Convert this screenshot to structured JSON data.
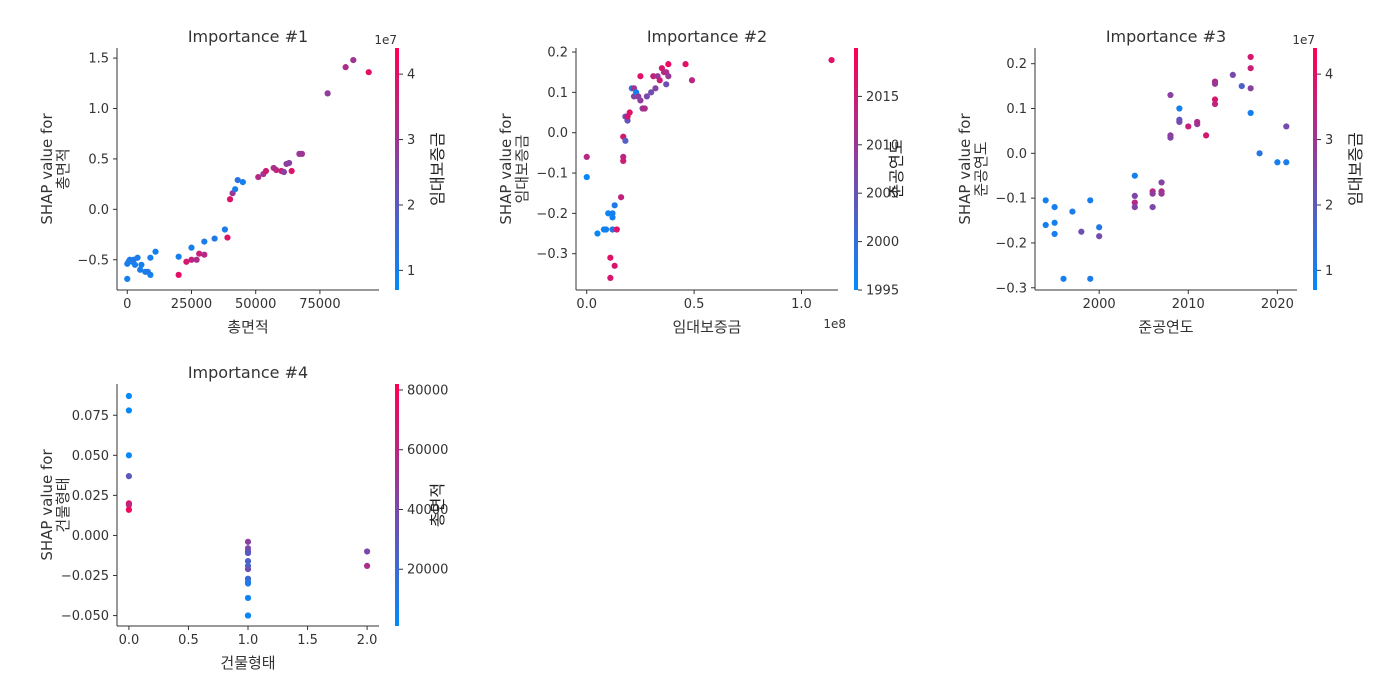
{
  "colors": {
    "low": "#008bfb",
    "high": "#ff0052"
  },
  "chart_data": [
    {
      "type": "scatter",
      "title": "Importance #1",
      "xlabel": "총면적",
      "ylabel_line1": "SHAP value for",
      "ylabel_line2": "총면적",
      "xlim": [
        -4000,
        98000
      ],
      "ylim": [
        -0.8,
        1.6
      ],
      "xticks": [
        0,
        25000,
        50000,
        75000
      ],
      "xtick_labels": [
        "0",
        "25000",
        "50000",
        "75000"
      ],
      "yticks": [
        -0.5,
        0.0,
        0.5,
        1.0,
        1.5
      ],
      "ytick_labels": [
        "−0.5",
        "0.0",
        "0.5",
        "1.0",
        "1.5"
      ],
      "x_offset": "",
      "colorbar": {
        "label": "임대보증금",
        "range": [
          0.7,
          4.4
        ],
        "ticks": [
          1,
          2,
          3,
          4
        ],
        "tick_labels": [
          "1",
          "2",
          "3",
          "4"
        ],
        "offset": "1e7"
      },
      "points": [
        [
          0,
          -0.69,
          1.0
        ],
        [
          0,
          -0.54,
          1.0
        ],
        [
          500,
          -0.52,
          1.1
        ],
        [
          1000,
          -0.5,
          1.1
        ],
        [
          2000,
          -0.52,
          1.0
        ],
        [
          2500,
          -0.5,
          1.2
        ],
        [
          3000,
          -0.55,
          1.0
        ],
        [
          4000,
          -0.48,
          1.1
        ],
        [
          5000,
          -0.6,
          1.0
        ],
        [
          5500,
          -0.55,
          1.0
        ],
        [
          7000,
          -0.62,
          1.1
        ],
        [
          8000,
          -0.62,
          1.2
        ],
        [
          9000,
          -0.65,
          1.0
        ],
        [
          9000,
          -0.48,
          1.0
        ],
        [
          11000,
          -0.42,
          1.0
        ],
        [
          20000,
          -0.47,
          1.0
        ],
        [
          20000,
          -0.65,
          4.0
        ],
        [
          23000,
          -0.52,
          3.8
        ],
        [
          25000,
          -0.5,
          3.5
        ],
        [
          25000,
          -0.38,
          1.0
        ],
        [
          27000,
          -0.5,
          3.2
        ],
        [
          28000,
          -0.44,
          3.6
        ],
        [
          30000,
          -0.45,
          3.3
        ],
        [
          30000,
          -0.32,
          1.1
        ],
        [
          34000,
          -0.29,
          1.2
        ],
        [
          38000,
          -0.2,
          1.1
        ],
        [
          39000,
          -0.28,
          3.9
        ],
        [
          40000,
          0.1,
          3.9
        ],
        [
          41000,
          0.16,
          2.9
        ],
        [
          42000,
          0.2,
          1.1
        ],
        [
          43000,
          0.29,
          1.3
        ],
        [
          45000,
          0.27,
          1.0
        ],
        [
          51000,
          0.32,
          3.3
        ],
        [
          53000,
          0.35,
          3.0
        ],
        [
          54000,
          0.38,
          3.7
        ],
        [
          57000,
          0.41,
          3.1
        ],
        [
          58000,
          0.39,
          3.4
        ],
        [
          60000,
          0.38,
          3.6
        ],
        [
          61000,
          0.37,
          2.7
        ],
        [
          62000,
          0.45,
          2.8
        ],
        [
          63000,
          0.46,
          2.7
        ],
        [
          64000,
          0.38,
          3.9
        ],
        [
          67000,
          0.55,
          2.9
        ],
        [
          68000,
          0.55,
          3.0
        ],
        [
          78000,
          1.15,
          2.8
        ],
        [
          85000,
          1.41,
          3.2
        ],
        [
          88000,
          1.48,
          3.0
        ],
        [
          94000,
          1.36,
          4.0
        ]
      ]
    },
    {
      "type": "scatter",
      "title": "Importance #2",
      "xlabel": "임대보증금",
      "ylabel_line1": "SHAP value for",
      "ylabel_line2": "임대보증금",
      "xlim": [
        -5000000,
        117000000
      ],
      "ylim": [
        -0.39,
        0.21
      ],
      "xticks": [
        0,
        50000000,
        100000000
      ],
      "xtick_labels": [
        "0.0",
        "0.5",
        "1.0"
      ],
      "yticks": [
        -0.3,
        -0.2,
        -0.1,
        0.0,
        0.1,
        0.2
      ],
      "ytick_labels": [
        "−0.3",
        "−0.2",
        "−0.1",
        "0.0",
        "0.1",
        "0.2"
      ],
      "x_offset": "1e8",
      "colorbar": {
        "label": "준공연도",
        "range": [
          1995,
          2020
        ],
        "ticks": [
          1995,
          2000,
          2005,
          2010,
          2015
        ],
        "tick_labels": [
          "1995",
          "2000",
          "2005",
          "2010",
          "2015"
        ],
        "offset": ""
      },
      "points": [
        [
          0,
          -0.06,
          2013
        ],
        [
          0,
          -0.11,
          1996
        ],
        [
          5000000,
          -0.25,
          1996
        ],
        [
          8000000,
          -0.24,
          1996
        ],
        [
          9000000,
          -0.24,
          1997
        ],
        [
          10000000,
          -0.2,
          1996
        ],
        [
          11000000,
          -0.31,
          2017
        ],
        [
          11000000,
          -0.36,
          2016
        ],
        [
          12000000,
          -0.2,
          1997
        ],
        [
          12000000,
          -0.24,
          1999
        ],
        [
          12000000,
          -0.21,
          1997
        ],
        [
          13000000,
          -0.33,
          2016
        ],
        [
          13000000,
          -0.18,
          1998
        ],
        [
          14000000,
          -0.24,
          2017
        ],
        [
          16000000,
          -0.16,
          2014
        ],
        [
          17000000,
          -0.06,
          2013
        ],
        [
          17000000,
          -0.07,
          2015
        ],
        [
          17000000,
          -0.01,
          2016
        ],
        [
          18000000,
          -0.02,
          2003
        ],
        [
          18000000,
          0.04,
          2004
        ],
        [
          19000000,
          0.03,
          2005
        ],
        [
          19000000,
          0.04,
          2016
        ],
        [
          20000000,
          0.05,
          2017
        ],
        [
          21000000,
          0.11,
          1999
        ],
        [
          22000000,
          0.09,
          2008
        ],
        [
          22000000,
          0.11,
          2011
        ],
        [
          23000000,
          0.1,
          1997
        ],
        [
          24000000,
          0.09,
          2009
        ],
        [
          25000000,
          0.14,
          2017
        ],
        [
          25000000,
          0.08,
          2009
        ],
        [
          26000000,
          0.06,
          2010
        ],
        [
          27000000,
          0.06,
          2012
        ],
        [
          28000000,
          0.09,
          2007
        ],
        [
          30000000,
          0.1,
          2006
        ],
        [
          31000000,
          0.14,
          2014
        ],
        [
          32000000,
          0.11,
          2008
        ],
        [
          33000000,
          0.14,
          2010
        ],
        [
          34000000,
          0.13,
          2015
        ],
        [
          35000000,
          0.16,
          2016
        ],
        [
          36000000,
          0.15,
          2013
        ],
        [
          37000000,
          0.15,
          2012
        ],
        [
          37000000,
          0.12,
          2006
        ],
        [
          38000000,
          0.14,
          2010
        ],
        [
          38000000,
          0.17,
          2018
        ],
        [
          46000000,
          0.17,
          2017
        ],
        [
          49000000,
          0.13,
          2013
        ],
        [
          114000000,
          0.18,
          2017
        ]
      ]
    },
    {
      "type": "scatter",
      "title": "Importance #3",
      "xlabel": "준공연도",
      "ylabel_line1": "SHAP value for",
      "ylabel_line2": "준공연도",
      "xlim": [
        1992.8,
        2022.2
      ],
      "ylim": [
        -0.305,
        0.235
      ],
      "xticks": [
        2000,
        2010,
        2020
      ],
      "xtick_labels": [
        "2000",
        "2010",
        "2020"
      ],
      "yticks": [
        -0.3,
        -0.2,
        -0.1,
        0.0,
        0.1,
        0.2
      ],
      "ytick_labels": [
        "−0.3",
        "−0.2",
        "−0.1",
        "0.0",
        "0.1",
        "0.2"
      ],
      "x_offset": "",
      "colorbar": {
        "label": "임대보증금",
        "range": [
          0.7,
          4.4
        ],
        "ticks": [
          1,
          2,
          3,
          4
        ],
        "tick_labels": [
          "1",
          "2",
          "3",
          "4"
        ],
        "offset": "1e7"
      },
      "points": [
        [
          1994,
          -0.105,
          1.0
        ],
        [
          1994,
          -0.16,
          1.0
        ],
        [
          1995,
          -0.12,
          1.0
        ],
        [
          1995,
          -0.155,
          1.0
        ],
        [
          1995,
          -0.18,
          1.1
        ],
        [
          1996,
          -0.28,
          1.0
        ],
        [
          1997,
          -0.13,
          1.1
        ],
        [
          1998,
          -0.175,
          2.3
        ],
        [
          1999,
          -0.105,
          1.0
        ],
        [
          1999,
          -0.28,
          1.1
        ],
        [
          2000,
          -0.165,
          1.2
        ],
        [
          2000,
          -0.185,
          2.4
        ],
        [
          2004,
          -0.05,
          1.0
        ],
        [
          2004,
          -0.095,
          2.5
        ],
        [
          2004,
          -0.11,
          3.3
        ],
        [
          2004,
          -0.12,
          2.6
        ],
        [
          2006,
          -0.085,
          3.4
        ],
        [
          2006,
          -0.09,
          2.8
        ],
        [
          2006,
          -0.12,
          2.5
        ],
        [
          2007,
          -0.065,
          2.6
        ],
        [
          2007,
          -0.085,
          3.2
        ],
        [
          2007,
          -0.09,
          2.9
        ],
        [
          2008,
          0.035,
          2.5
        ],
        [
          2008,
          0.04,
          2.7
        ],
        [
          2008,
          0.13,
          2.7
        ],
        [
          2009,
          0.1,
          1.0
        ],
        [
          2009,
          0.075,
          2.0
        ],
        [
          2009,
          0.07,
          2.4
        ],
        [
          2010,
          0.06,
          3.6
        ],
        [
          2011,
          0.065,
          2.8
        ],
        [
          2011,
          0.07,
          3.2
        ],
        [
          2012,
          0.04,
          3.7
        ],
        [
          2013,
          0.16,
          3.3
        ],
        [
          2013,
          0.155,
          2.9
        ],
        [
          2013,
          0.12,
          3.8
        ],
        [
          2013,
          0.11,
          3.5
        ],
        [
          2015,
          0.175,
          2.4
        ],
        [
          2016,
          0.15,
          1.8
        ],
        [
          2017,
          0.215,
          3.8
        ],
        [
          2017,
          0.19,
          3.6
        ],
        [
          2017,
          0.145,
          2.7
        ],
        [
          2017,
          0.09,
          1.0
        ],
        [
          2018,
          0.0,
          1.3
        ],
        [
          2020,
          -0.02,
          1.0
        ],
        [
          2021,
          -0.02,
          1.1
        ],
        [
          2021,
          0.06,
          2.4
        ]
      ]
    },
    {
      "type": "scatter",
      "title": "Importance #4",
      "xlabel": "건물형태",
      "ylabel_line1": "SHAP value for",
      "ylabel_line2": "건물형태",
      "xlim": [
        -0.1,
        2.1
      ],
      "ylim": [
        -0.0565,
        0.0945
      ],
      "xticks": [
        0.0,
        0.5,
        1.0,
        1.5,
        2.0
      ],
      "xtick_labels": [
        "0.0",
        "0.5",
        "1.0",
        "1.5",
        "2.0"
      ],
      "yticks": [
        -0.05,
        -0.025,
        0.0,
        0.025,
        0.05,
        0.075
      ],
      "ytick_labels": [
        "−0.050",
        "−0.025",
        "0.000",
        "0.025",
        "0.050",
        "0.075"
      ],
      "x_offset": "",
      "colorbar": {
        "label": "총면적",
        "range": [
          1000,
          82000
        ],
        "ticks": [
          20000,
          40000,
          60000,
          80000
        ],
        "tick_labels": [
          "20000",
          "40000",
          "60000",
          "80000"
        ],
        "offset": ""
      },
      "points": [
        [
          0,
          0.087,
          3000
        ],
        [
          0,
          0.078,
          2500
        ],
        [
          0,
          0.05,
          3000
        ],
        [
          0,
          0.037,
          30000
        ],
        [
          0,
          0.02,
          75000
        ],
        [
          0,
          0.019,
          60000
        ],
        [
          0,
          0.016,
          78000
        ],
        [
          1,
          -0.004,
          45000
        ],
        [
          1,
          -0.008,
          40000
        ],
        [
          1,
          -0.01,
          35000
        ],
        [
          1,
          -0.011,
          30000
        ],
        [
          1,
          -0.016,
          25000
        ],
        [
          1,
          -0.019,
          22000
        ],
        [
          1,
          -0.021,
          35000
        ],
        [
          1,
          -0.027,
          20000
        ],
        [
          1,
          -0.029,
          15000
        ],
        [
          1,
          -0.03,
          10000
        ],
        [
          1,
          -0.039,
          5000
        ],
        [
          1,
          -0.05,
          3000
        ],
        [
          1,
          -0.05,
          4000
        ],
        [
          2,
          -0.01,
          40000
        ],
        [
          2,
          -0.019,
          55000
        ]
      ]
    }
  ]
}
